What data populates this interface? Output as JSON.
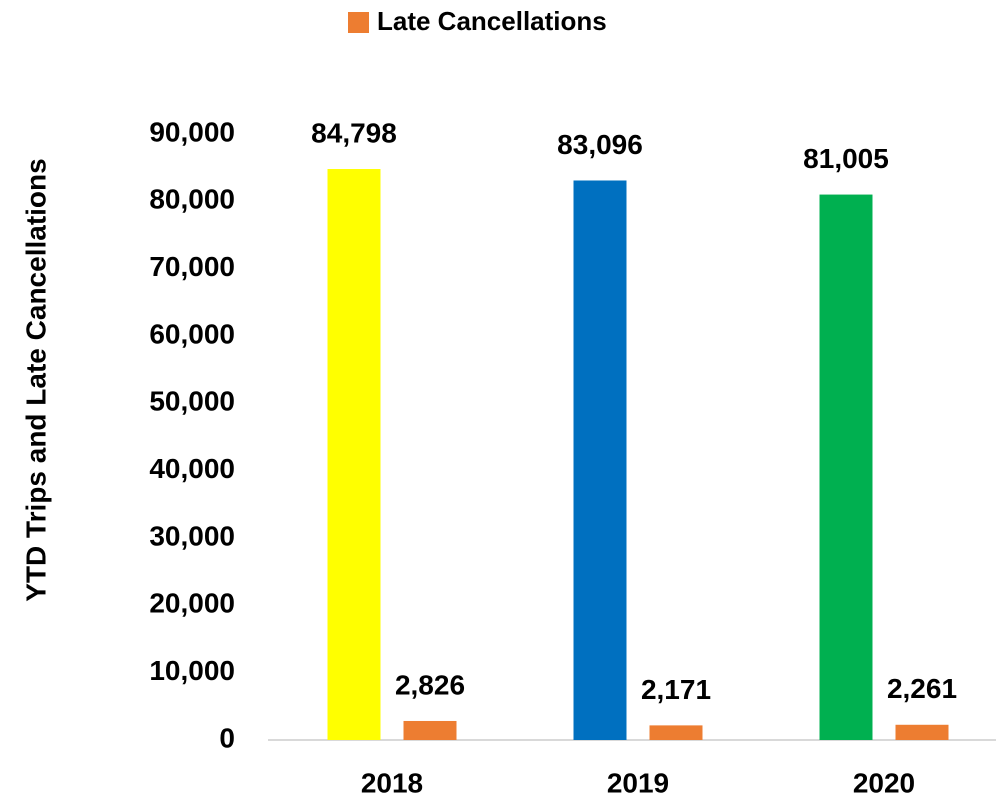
{
  "chart_data": {
    "type": "bar",
    "y_label": "YTD Trips and Late Cancellations",
    "categories": [
      "2018",
      "2019",
      "2020"
    ],
    "series": [
      {
        "colors": [
          "#ffff00",
          "#0070c0",
          "#00b050"
        ],
        "values": [
          84798,
          83096,
          81005
        ],
        "value_labels": [
          "84,798",
          "83,096",
          "81,005"
        ]
      },
      {
        "name": "Late Cancellations",
        "color": "#ed7d31",
        "values": [
          2826,
          2171,
          2261
        ],
        "value_labels": [
          "2,826",
          "2,171",
          "2,261"
        ]
      }
    ],
    "ylim": [
      0,
      90000
    ],
    "yticks": [
      0,
      {
        "value": 10000,
        "label": "10,000"
      },
      {
        "value": 20000,
        "label": "20,000"
      },
      {
        "value": 30000,
        "label": "30,000"
      },
      {
        "value": 40000,
        "label": "40,000"
      },
      {
        "value": 50000,
        "label": "50,000"
      },
      {
        "value": 60000,
        "label": "60,000"
      },
      {
        "value": 70000,
        "label": "70,000"
      },
      {
        "value": 80000,
        "label": "80,000"
      },
      {
        "value": 90000,
        "label": "90,000"
      }
    ],
    "legend": "top"
  }
}
